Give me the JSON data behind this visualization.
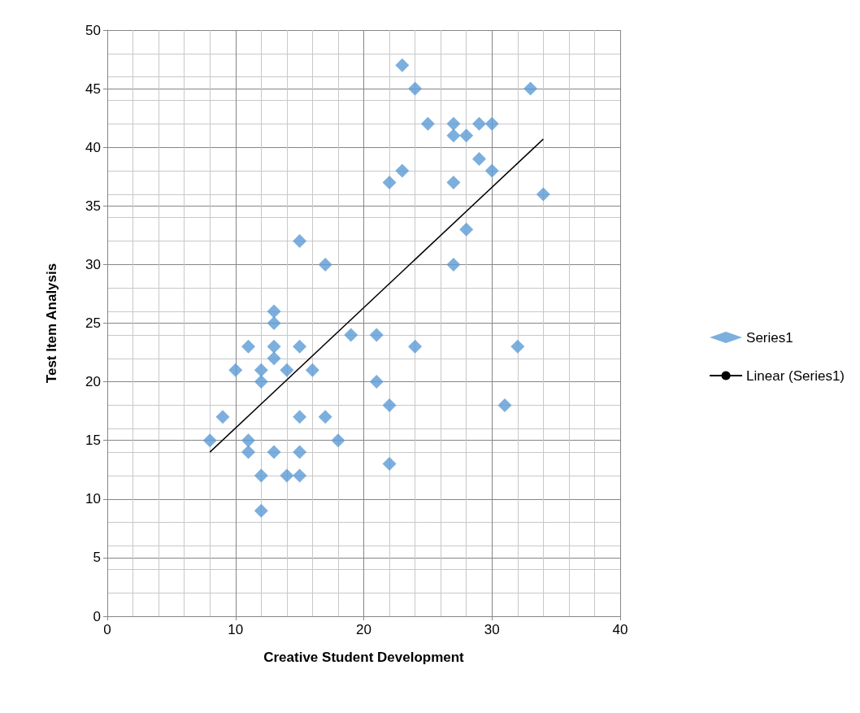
{
  "chart_data": {
    "type": "scatter",
    "xlabel": "Creative Student Development",
    "ylabel": "Test Item Analysis",
    "xlim": [
      0,
      40
    ],
    "xticks": [
      0,
      10,
      20,
      30,
      40
    ],
    "ylim": [
      0,
      50
    ],
    "yticks": [
      0,
      5,
      10,
      15,
      20,
      25,
      30,
      35,
      40,
      45,
      50
    ],
    "grid": true,
    "legend": "right",
    "marker": "diamond",
    "series": [
      {
        "name": "Series1",
        "color": "#5b9bd5",
        "x": [
          8,
          9,
          10,
          11,
          11,
          11,
          12,
          12,
          12,
          12,
          13,
          13,
          13,
          13,
          13,
          14,
          14,
          15,
          15,
          15,
          15,
          15,
          16,
          17,
          17,
          18,
          19,
          21,
          21,
          22,
          22,
          22,
          23,
          23,
          24,
          24,
          25,
          27,
          27,
          27,
          27,
          28,
          28,
          29,
          29,
          30,
          30,
          31,
          32,
          33,
          34
        ],
        "values": [
          15,
          17,
          21,
          23,
          15,
          14,
          21,
          20,
          12,
          9,
          26,
          25,
          23,
          22,
          14,
          21,
          12,
          32,
          23,
          17,
          14,
          12,
          21,
          30,
          17,
          15,
          24,
          24,
          20,
          37,
          18,
          13,
          47,
          38,
          45,
          23,
          42,
          42,
          41,
          37,
          30,
          41,
          33,
          42,
          39,
          42,
          38,
          18,
          23,
          45,
          36
        ]
      },
      {
        "name": "Linear (Series1)",
        "type": "line",
        "color": "#000000",
        "marker": "none",
        "line_style": "solid",
        "x": [
          8,
          34
        ],
        "values": [
          14.0,
          40.7
        ]
      }
    ]
  }
}
